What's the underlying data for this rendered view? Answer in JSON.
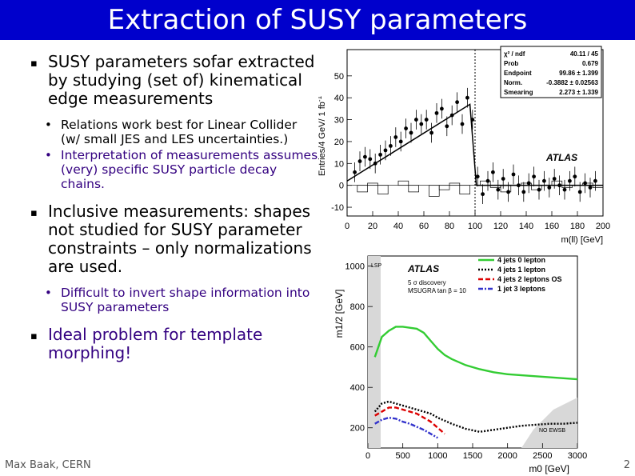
{
  "slide": {
    "title": "Extraction of SUSY parameters",
    "footer_left": "Max Baak, CERN",
    "page_number": "2",
    "bullets": [
      {
        "text": "SUSY parameters sofar extracted by studying (set of) kinematical edge measurements",
        "color": "#000000",
        "sub": [
          {
            "text": "Relations work best for Linear Collider (w/ small JES and LES uncertainties.)",
            "color": "#000000"
          },
          {
            "text": "Interpretation of measurements assumes (very) specific SUSY particle decay chains.",
            "color": "#330080"
          }
        ]
      },
      {
        "text": "Inclusive measurements: shapes not studied for SUSY parameter constraints – only normalizations are used.",
        "color": "#000000",
        "sub": [
          {
            "text": "Difficult to invert shape information into SUSY parameters",
            "color": "#330080"
          }
        ]
      },
      {
        "text": "Ideal problem for template morphing!",
        "color": "#330080",
        "sub": []
      }
    ]
  },
  "chart_data": [
    {
      "type": "scatter",
      "ylabel": "Entries/4 GeV/ 1 fb",
      "ylabel_superscript": "-1",
      "xlabel": "m(ll) [GeV]",
      "xlim": [
        0,
        200
      ],
      "ylim": [
        -14,
        62
      ],
      "xticks": [
        0,
        20,
        40,
        60,
        80,
        100,
        120,
        140,
        160,
        180,
        200
      ],
      "yticks": [
        -10,
        0,
        10,
        20,
        30,
        40,
        50
      ],
      "annotation": "ATLAS",
      "fit_box": [
        {
          "label": "χ² / ndf",
          "value": "40.11 / 45"
        },
        {
          "label": "Prob",
          "value": "0.679"
        },
        {
          "label": "Endpoint",
          "value": "99.86 ± 1.399"
        },
        {
          "label": "Norm.",
          "value": "-0.3882 ± 0.02563"
        },
        {
          "label": "Smearing",
          "value": "2.273 ± 1.339"
        }
      ],
      "points": [
        [
          6,
          6
        ],
        [
          10,
          11
        ],
        [
          14,
          13
        ],
        [
          18,
          12
        ],
        [
          22,
          10
        ],
        [
          26,
          14
        ],
        [
          30,
          16
        ],
        [
          34,
          18
        ],
        [
          38,
          22
        ],
        [
          42,
          20
        ],
        [
          46,
          26
        ],
        [
          50,
          24
        ],
        [
          54,
          30
        ],
        [
          58,
          28
        ],
        [
          62,
          30
        ],
        [
          66,
          24
        ],
        [
          70,
          33
        ],
        [
          74,
          35
        ],
        [
          78,
          27
        ],
        [
          82,
          32
        ],
        [
          86,
          38
        ],
        [
          90,
          28
        ],
        [
          94,
          40
        ],
        [
          98,
          30
        ],
        [
          102,
          4
        ],
        [
          106,
          -4
        ],
        [
          110,
          2
        ],
        [
          114,
          6
        ],
        [
          118,
          -2
        ],
        [
          122,
          3
        ],
        [
          126,
          -3
        ],
        [
          130,
          5
        ],
        [
          134,
          0
        ],
        [
          138,
          -3
        ],
        [
          142,
          1
        ],
        [
          146,
          4
        ],
        [
          150,
          -2
        ],
        [
          154,
          2
        ],
        [
          158,
          -1
        ],
        [
          162,
          3
        ],
        [
          166,
          0
        ],
        [
          170,
          -2
        ],
        [
          174,
          2
        ],
        [
          178,
          4
        ],
        [
          182,
          -3
        ],
        [
          186,
          1
        ],
        [
          190,
          -1
        ],
        [
          194,
          2
        ]
      ],
      "fit_line": [
        [
          0,
          2
        ],
        [
          96,
          37
        ],
        [
          101,
          0
        ],
        [
          200,
          0
        ]
      ],
      "endpoint_marker": 100,
      "background_hist": [
        [
          0,
          0
        ],
        [
          8,
          -3
        ],
        [
          16,
          1
        ],
        [
          24,
          -4
        ],
        [
          32,
          0
        ],
        [
          40,
          2
        ],
        [
          48,
          -3
        ],
        [
          56,
          0
        ],
        [
          64,
          -5
        ],
        [
          72,
          -2
        ],
        [
          80,
          1
        ],
        [
          88,
          -4
        ],
        [
          96,
          0
        ],
        [
          104,
          2
        ],
        [
          112,
          -1
        ],
        [
          120,
          -3
        ],
        [
          128,
          0
        ],
        [
          136,
          1
        ],
        [
          144,
          -2
        ],
        [
          152,
          0
        ],
        [
          160,
          2
        ],
        [
          168,
          -1
        ],
        [
          176,
          0
        ],
        [
          184,
          1
        ],
        [
          192,
          -1
        ]
      ]
    },
    {
      "type": "line",
      "xlabel": "m0 [GeV]",
      "ylabel": "m1/2 [GeV]",
      "xlim": [
        0,
        3000
      ],
      "ylim": [
        100,
        1050
      ],
      "xticks": [
        0,
        500,
        1000,
        1500,
        2000,
        2500,
        3000
      ],
      "yticks": [
        200,
        400,
        600,
        800,
        1000
      ],
      "annotation": "ATLAS",
      "subannotation": [
        "5 σ discovery",
        "MSUGRA tan β = 10"
      ],
      "region_labels": [
        "LSP",
        "NO EWSB"
      ],
      "series": [
        {
          "name": "4 jets 0 lepton",
          "color": "#33cc33",
          "dash": "",
          "x": [
            100,
            200,
            300,
            400,
            500,
            600,
            700,
            800,
            900,
            1000,
            1100,
            1200,
            1400,
            1600,
            1800,
            2000,
            2200,
            2400,
            2600,
            2800,
            3000
          ],
          "y": [
            550,
            650,
            680,
            700,
            700,
            695,
            690,
            670,
            630,
            590,
            560,
            540,
            510,
            490,
            475,
            465,
            460,
            455,
            450,
            445,
            440
          ]
        },
        {
          "name": "4 jets 1 lepton",
          "color": "#000000",
          "dash": "2,2",
          "x": [
            100,
            200,
            300,
            400,
            500,
            700,
            900,
            1000,
            1200,
            1400,
            1600,
            1800,
            2000,
            2200,
            2400,
            2600,
            2800,
            3000
          ],
          "y": [
            280,
            320,
            330,
            320,
            310,
            290,
            270,
            250,
            220,
            195,
            180,
            190,
            200,
            210,
            215,
            220,
            220,
            225
          ]
        },
        {
          "name": "4 jets 2 leptons OS",
          "color": "#dd0000",
          "dash": "6,3",
          "x": [
            100,
            200,
            300,
            400,
            500,
            600,
            700,
            800,
            900,
            1000,
            1100
          ],
          "y": [
            260,
            280,
            300,
            300,
            290,
            280,
            270,
            250,
            230,
            200,
            170
          ]
        },
        {
          "name": "1 jet 3 leptons",
          "color": "#3333cc",
          "dash": "6,2,2,2",
          "x": [
            100,
            200,
            300,
            400,
            500,
            600,
            700,
            800,
            900,
            1000
          ],
          "y": [
            220,
            240,
            250,
            245,
            230,
            220,
            205,
            190,
            170,
            150
          ]
        }
      ]
    }
  ]
}
